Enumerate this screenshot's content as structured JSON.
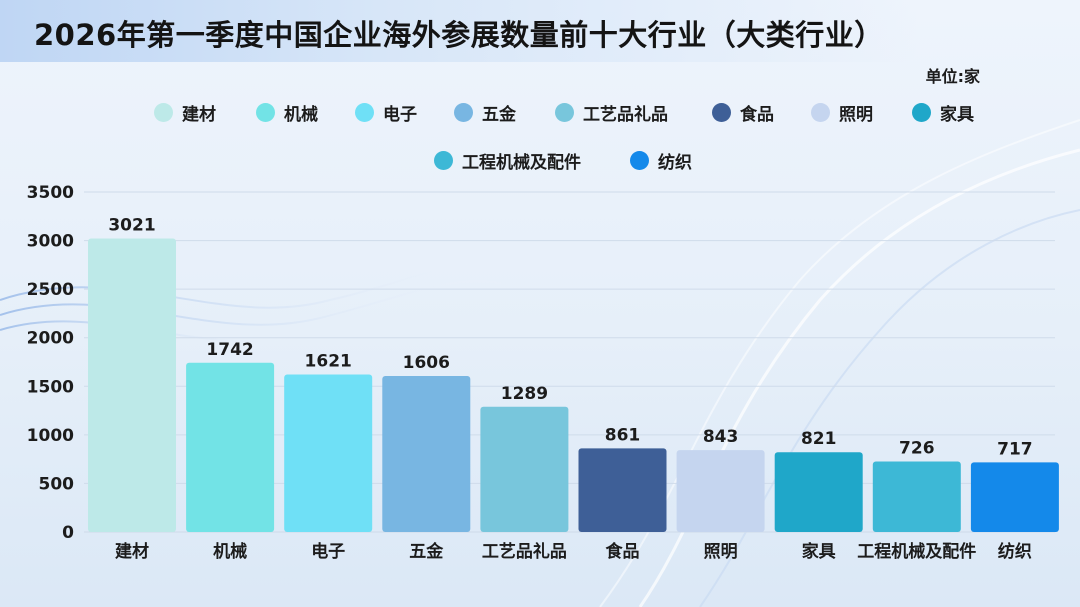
{
  "title": "2026年第一季度中国企业海外参展数量前十大行业（大类行业）",
  "unit_label": "单位:家",
  "chart_data": {
    "type": "bar",
    "title": "2026年第一季度中国企业海外参展数量前十大行业（大类行业）",
    "xlabel": "",
    "ylabel": "",
    "categories": [
      "建材",
      "机械",
      "电子",
      "五金",
      "工艺品礼品",
      "食品",
      "照明",
      "家具",
      "工程机械及配件",
      "纺织"
    ],
    "values": [
      3021,
      1742,
      1621,
      1606,
      1289,
      861,
      843,
      821,
      726,
      717
    ],
    "colors": [
      "#bde9e8",
      "#72e3e6",
      "#6fe0f6",
      "#78b6e2",
      "#78c6dc",
      "#3e5f97",
      "#c5d5ef",
      "#1fa7c9",
      "#3db8d6",
      "#1489ea"
    ],
    "ylim": [
      0,
      3500
    ],
    "yticks": [
      0,
      500,
      1000,
      1500,
      2000,
      2500,
      3000,
      3500
    ],
    "grid": true,
    "legend_placement": "top"
  }
}
